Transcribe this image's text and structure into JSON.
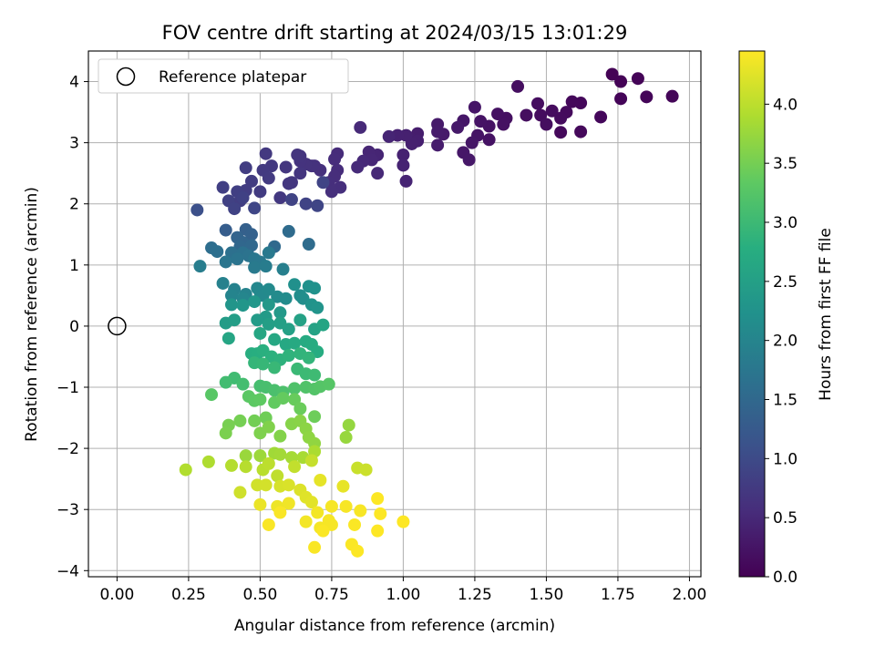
{
  "chart_data": {
    "type": "scatter",
    "title": "FOV centre drift starting at 2024/03/15 13:01:29",
    "xlabel": "Angular distance from reference (arcmin)",
    "ylabel": "Rotation from reference (arcmin)",
    "xlim": [
      -0.1,
      2.04
    ],
    "ylim": [
      -4.1,
      4.5
    ],
    "xticks": [
      "0.00",
      "0.25",
      "0.50",
      "0.75",
      "1.00",
      "1.25",
      "1.50",
      "1.75",
      "2.00"
    ],
    "xtick_values": [
      0,
      0.25,
      0.5,
      0.75,
      1.0,
      1.25,
      1.5,
      1.75,
      2.0
    ],
    "yticks": [
      "4",
      "3",
      "2",
      "1",
      "0",
      "−1",
      "−2",
      "−3",
      "−4"
    ],
    "ytick_values": [
      4,
      3,
      2,
      1,
      0,
      -1,
      -2,
      -3,
      -4
    ],
    "grid": true,
    "legend": {
      "position": "upper-left",
      "entry": "Reference platepar",
      "marker": "open-circle"
    },
    "reference_point": {
      "x": 0.0,
      "y": 0.0
    },
    "colorbar": {
      "label": "Hours from first FF file",
      "colormap": "viridis",
      "range": [
        0,
        4.45
      ],
      "ticks": [
        "0.0",
        "0.5",
        "1.0",
        "1.5",
        "2.0",
        "2.5",
        "3.0",
        "3.5",
        "4.0"
      ],
      "tick_values": [
        0,
        0.5,
        1.0,
        1.5,
        2.0,
        2.5,
        3.0,
        3.5,
        4.0
      ]
    },
    "points": [
      [
        1.73,
        4.12,
        0.02
      ],
      [
        1.76,
        4.0,
        0.03
      ],
      [
        1.82,
        4.05,
        0.04
      ],
      [
        1.76,
        3.72,
        0.05
      ],
      [
        1.85,
        3.75,
        0.05
      ],
      [
        1.94,
        3.76,
        0.06
      ],
      [
        1.69,
        3.42,
        0.08
      ],
      [
        1.62,
        3.65,
        0.08
      ],
      [
        1.59,
        3.67,
        0.09
      ],
      [
        1.62,
        3.18,
        0.1
      ],
      [
        1.55,
        3.17,
        0.1
      ],
      [
        1.57,
        3.5,
        0.12
      ],
      [
        1.55,
        3.4,
        0.13
      ],
      [
        1.52,
        3.52,
        0.14
      ],
      [
        1.48,
        3.45,
        0.14
      ],
      [
        1.47,
        3.64,
        0.15
      ],
      [
        1.5,
        3.3,
        0.16
      ],
      [
        1.43,
        3.45,
        0.16
      ],
      [
        1.4,
        3.92,
        0.17
      ],
      [
        1.36,
        3.4,
        0.19
      ],
      [
        1.35,
        3.3,
        0.2
      ],
      [
        1.33,
        3.47,
        0.2
      ],
      [
        1.3,
        3.27,
        0.21
      ],
      [
        1.3,
        3.05,
        0.22
      ],
      [
        1.27,
        3.35,
        0.23
      ],
      [
        1.26,
        3.12,
        0.24
      ],
      [
        1.25,
        3.58,
        0.25
      ],
      [
        1.24,
        3.0,
        0.26
      ],
      [
        1.21,
        3.36,
        0.27
      ],
      [
        1.21,
        2.84,
        0.28
      ],
      [
        1.23,
        2.72,
        0.29
      ],
      [
        1.19,
        3.25,
        0.3
      ],
      [
        1.14,
        3.14,
        0.31
      ],
      [
        1.12,
        3.3,
        0.32
      ],
      [
        1.12,
        3.18,
        0.33
      ],
      [
        1.12,
        2.96,
        0.34
      ],
      [
        1.05,
        3.15,
        0.36
      ],
      [
        1.03,
        3.05,
        0.37
      ],
      [
        1.05,
        3.03,
        0.38
      ],
      [
        1.03,
        2.98,
        0.39
      ],
      [
        1.01,
        3.12,
        0.4
      ],
      [
        0.98,
        3.12,
        0.41
      ],
      [
        1.0,
        2.8,
        0.42
      ],
      [
        1.0,
        2.63,
        0.43
      ],
      [
        1.01,
        2.37,
        0.44
      ],
      [
        0.95,
        3.1,
        0.45
      ],
      [
        0.91,
        2.8,
        0.46
      ],
      [
        0.88,
        2.85,
        0.47
      ],
      [
        0.89,
        2.72,
        0.48
      ],
      [
        0.91,
        2.5,
        0.5
      ],
      [
        0.86,
        2.7,
        0.51
      ],
      [
        0.85,
        3.25,
        0.52
      ],
      [
        0.84,
        2.6,
        0.53
      ],
      [
        0.77,
        2.82,
        0.54
      ],
      [
        0.76,
        2.73,
        0.55
      ],
      [
        0.77,
        2.55,
        0.56
      ],
      [
        0.76,
        2.45,
        0.57
      ],
      [
        0.78,
        2.27,
        0.58
      ],
      [
        0.74,
        2.35,
        0.59
      ],
      [
        0.75,
        2.2,
        0.6
      ],
      [
        0.71,
        2.55,
        0.61
      ],
      [
        0.69,
        2.62,
        0.62
      ],
      [
        0.68,
        2.62,
        0.63
      ],
      [
        0.66,
        2.65,
        0.64
      ],
      [
        0.64,
        2.7,
        0.65
      ],
      [
        0.64,
        2.78,
        0.66
      ],
      [
        0.63,
        2.8,
        0.67
      ],
      [
        0.64,
        2.5,
        0.68
      ],
      [
        0.61,
        2.35,
        0.69
      ],
      [
        0.6,
        2.33,
        0.7
      ],
      [
        0.59,
        2.6,
        0.71
      ],
      [
        0.57,
        2.1,
        0.72
      ],
      [
        0.52,
        2.82,
        0.73
      ],
      [
        0.54,
        2.62,
        0.74
      ],
      [
        0.51,
        2.55,
        0.75
      ],
      [
        0.53,
        2.42,
        0.76
      ],
      [
        0.5,
        2.2,
        0.77
      ],
      [
        0.47,
        2.37,
        0.78
      ],
      [
        0.45,
        2.59,
        0.79
      ],
      [
        0.45,
        2.22,
        0.8
      ],
      [
        0.43,
        2.05,
        0.81
      ],
      [
        0.42,
        2.2,
        0.82
      ],
      [
        0.37,
        2.27,
        0.83
      ],
      [
        0.39,
        2.05,
        0.85
      ],
      [
        0.44,
        2.1,
        0.86
      ],
      [
        0.41,
        1.92,
        0.87
      ],
      [
        0.61,
        2.07,
        0.88
      ],
      [
        0.66,
        2.0,
        0.89
      ],
      [
        0.72,
        2.35,
        0.9
      ],
      [
        0.7,
        1.97,
        0.92
      ],
      [
        0.48,
        1.93,
        0.93
      ],
      [
        0.28,
        1.9,
        1.08
      ],
      [
        0.38,
        1.57,
        1.3
      ],
      [
        0.45,
        1.58,
        1.35
      ],
      [
        0.47,
        1.5,
        1.38
      ],
      [
        0.42,
        1.45,
        1.42
      ],
      [
        0.44,
        1.37,
        1.45
      ],
      [
        0.43,
        1.3,
        1.48
      ],
      [
        0.47,
        1.32,
        1.5
      ],
      [
        0.55,
        1.3,
        1.52
      ],
      [
        0.6,
        1.55,
        1.54
      ],
      [
        0.67,
        1.34,
        1.56
      ],
      [
        0.33,
        1.28,
        1.6
      ],
      [
        0.35,
        1.22,
        1.62
      ],
      [
        0.4,
        1.2,
        1.64
      ],
      [
        0.44,
        1.2,
        1.66
      ],
      [
        0.46,
        1.15,
        1.68
      ],
      [
        0.42,
        1.1,
        1.7
      ],
      [
        0.38,
        1.05,
        1.72
      ],
      [
        0.48,
        1.1,
        1.75
      ],
      [
        0.5,
        1.05,
        1.77
      ],
      [
        0.53,
        1.2,
        1.8
      ],
      [
        0.48,
        0.96,
        1.82
      ],
      [
        0.52,
        0.98,
        1.85
      ],
      [
        0.29,
        0.98,
        1.87
      ],
      [
        0.58,
        0.93,
        1.9
      ],
      [
        0.37,
        0.7,
        1.93
      ],
      [
        0.41,
        0.6,
        1.95
      ],
      [
        0.45,
        0.52,
        1.97
      ],
      [
        0.4,
        0.5,
        2.0
      ],
      [
        0.44,
        0.45,
        2.02
      ],
      [
        0.49,
        0.62,
        2.05
      ],
      [
        0.5,
        0.55,
        2.07
      ],
      [
        0.51,
        0.5,
        2.08
      ],
      [
        0.53,
        0.6,
        2.1
      ],
      [
        0.56,
        0.48,
        2.12
      ],
      [
        0.59,
        0.45,
        2.14
      ],
      [
        0.64,
        0.5,
        2.16
      ],
      [
        0.65,
        0.45,
        2.18
      ],
      [
        0.62,
        0.68,
        2.2
      ],
      [
        0.67,
        0.65,
        2.22
      ],
      [
        0.69,
        0.62,
        2.24
      ],
      [
        0.68,
        0.35,
        2.26
      ],
      [
        0.7,
        0.3,
        2.28
      ],
      [
        0.4,
        0.35,
        2.3
      ],
      [
        0.44,
        0.34,
        2.32
      ],
      [
        0.48,
        0.4,
        2.34
      ],
      [
        0.53,
        0.35,
        2.36
      ],
      [
        0.57,
        0.22,
        2.38
      ],
      [
        0.52,
        0.15,
        2.4
      ],
      [
        0.49,
        0.1,
        2.42
      ],
      [
        0.38,
        0.05,
        2.44
      ],
      [
        0.41,
        0.1,
        2.46
      ],
      [
        0.53,
        0.03,
        2.48
      ],
      [
        0.57,
        0.05,
        2.5
      ],
      [
        0.6,
        -0.05,
        2.52
      ],
      [
        0.64,
        0.1,
        2.54
      ],
      [
        0.69,
        -0.05,
        2.56
      ],
      [
        0.72,
        0.02,
        2.58
      ],
      [
        0.39,
        -0.2,
        2.6
      ],
      [
        0.5,
        -0.12,
        2.62
      ],
      [
        0.55,
        -0.22,
        2.64
      ],
      [
        0.59,
        -0.3,
        2.66
      ],
      [
        0.62,
        -0.28,
        2.68
      ],
      [
        0.66,
        -0.25,
        2.7
      ],
      [
        0.68,
        -0.3,
        2.72
      ],
      [
        0.7,
        -0.42,
        2.74
      ],
      [
        0.47,
        -0.45,
        2.76
      ],
      [
        0.49,
        -0.45,
        2.78
      ],
      [
        0.51,
        -0.4,
        2.8
      ],
      [
        0.54,
        -0.5,
        2.82
      ],
      [
        0.57,
        -0.55,
        2.84
      ],
      [
        0.6,
        -0.48,
        2.86
      ],
      [
        0.64,
        -0.45,
        2.88
      ],
      [
        0.67,
        -0.52,
        2.9
      ],
      [
        0.48,
        -0.6,
        2.92
      ],
      [
        0.51,
        -0.62,
        2.94
      ],
      [
        0.55,
        -0.68,
        2.96
      ],
      [
        0.63,
        -0.7,
        2.98
      ],
      [
        0.66,
        -0.78,
        3.0
      ],
      [
        0.69,
        -0.8,
        3.02
      ],
      [
        0.41,
        -0.85,
        3.04
      ],
      [
        0.38,
        -0.92,
        3.06
      ],
      [
        0.44,
        -0.95,
        3.08
      ],
      [
        0.5,
        -0.98,
        3.1
      ],
      [
        0.52,
        -1.0,
        3.12
      ],
      [
        0.55,
        -1.05,
        3.14
      ],
      [
        0.58,
        -1.08,
        3.16
      ],
      [
        0.62,
        -1.02,
        3.18
      ],
      [
        0.66,
        -1.0,
        3.2
      ],
      [
        0.69,
        -1.03,
        3.22
      ],
      [
        0.71,
        -0.99,
        3.24
      ],
      [
        0.74,
        -0.95,
        3.26
      ],
      [
        0.33,
        -1.12,
        3.28
      ],
      [
        0.46,
        -1.15,
        3.3
      ],
      [
        0.48,
        -1.22,
        3.32
      ],
      [
        0.5,
        -1.2,
        3.34
      ],
      [
        0.55,
        -1.25,
        3.36
      ],
      [
        0.58,
        -1.18,
        3.38
      ],
      [
        0.62,
        -1.2,
        3.4
      ],
      [
        0.64,
        -1.35,
        3.42
      ],
      [
        0.69,
        -1.48,
        3.44
      ],
      [
        0.52,
        -1.5,
        3.46
      ],
      [
        0.48,
        -1.55,
        3.48
      ],
      [
        0.43,
        -1.55,
        3.5
      ],
      [
        0.39,
        -1.62,
        3.52
      ],
      [
        0.38,
        -1.75,
        3.54
      ],
      [
        0.5,
        -1.75,
        3.56
      ],
      [
        0.53,
        -1.65,
        3.58
      ],
      [
        0.57,
        -1.8,
        3.6
      ],
      [
        0.61,
        -1.6,
        3.62
      ],
      [
        0.64,
        -1.55,
        3.64
      ],
      [
        0.66,
        -1.68,
        3.66
      ],
      [
        0.67,
        -1.82,
        3.68
      ],
      [
        0.69,
        -1.92,
        3.7
      ],
      [
        0.81,
        -1.62,
        3.72
      ],
      [
        0.8,
        -1.82,
        3.74
      ],
      [
        0.45,
        -2.12,
        3.76
      ],
      [
        0.5,
        -2.12,
        3.78
      ],
      [
        0.55,
        -2.08,
        3.8
      ],
      [
        0.57,
        -2.1,
        3.82
      ],
      [
        0.61,
        -2.15,
        3.84
      ],
      [
        0.65,
        -2.15,
        3.86
      ],
      [
        0.69,
        -2.05,
        3.88
      ],
      [
        0.32,
        -2.22,
        3.9
      ],
      [
        0.24,
        -2.35,
        3.92
      ],
      [
        0.4,
        -2.28,
        3.94
      ],
      [
        0.45,
        -2.3,
        3.96
      ],
      [
        0.51,
        -2.35,
        3.98
      ],
      [
        0.53,
        -2.25,
        4.0
      ],
      [
        0.56,
        -2.45,
        4.02
      ],
      [
        0.62,
        -2.3,
        4.04
      ],
      [
        0.68,
        -2.2,
        4.06
      ],
      [
        0.84,
        -2.32,
        4.08
      ],
      [
        0.87,
        -2.35,
        4.1
      ],
      [
        0.43,
        -2.72,
        4.12
      ],
      [
        0.49,
        -2.6,
        4.14
      ],
      [
        0.52,
        -2.6,
        4.16
      ],
      [
        0.57,
        -2.62,
        4.18
      ],
      [
        0.6,
        -2.6,
        4.2
      ],
      [
        0.64,
        -2.68,
        4.22
      ],
      [
        0.66,
        -2.8,
        4.24
      ],
      [
        0.68,
        -2.88,
        4.26
      ],
      [
        0.71,
        -2.52,
        4.28
      ],
      [
        0.79,
        -2.62,
        4.3
      ],
      [
        0.5,
        -2.92,
        4.32
      ],
      [
        0.56,
        -2.95,
        4.34
      ],
      [
        0.6,
        -2.9,
        4.36
      ],
      [
        0.66,
        -3.2,
        4.38
      ],
      [
        0.7,
        -3.05,
        4.38
      ],
      [
        0.71,
        -3.3,
        4.39
      ],
      [
        0.74,
        -3.18,
        4.4
      ],
      [
        0.75,
        -3.25,
        4.4
      ],
      [
        0.75,
        -2.95,
        4.4
      ],
      [
        0.8,
        -2.95,
        4.41
      ],
      [
        0.85,
        -3.02,
        4.41
      ],
      [
        0.53,
        -3.25,
        4.42
      ],
      [
        0.57,
        -3.05,
        4.42
      ],
      [
        0.69,
        -3.62,
        4.42
      ],
      [
        0.72,
        -3.35,
        4.43
      ],
      [
        0.82,
        -3.57,
        4.43
      ],
      [
        0.83,
        -3.25,
        4.43
      ],
      [
        0.84,
        -3.68,
        4.44
      ],
      [
        0.91,
        -2.82,
        4.44
      ],
      [
        0.92,
        -3.07,
        4.44
      ],
      [
        0.91,
        -3.35,
        4.45
      ],
      [
        1.0,
        -3.2,
        4.45
      ]
    ]
  }
}
